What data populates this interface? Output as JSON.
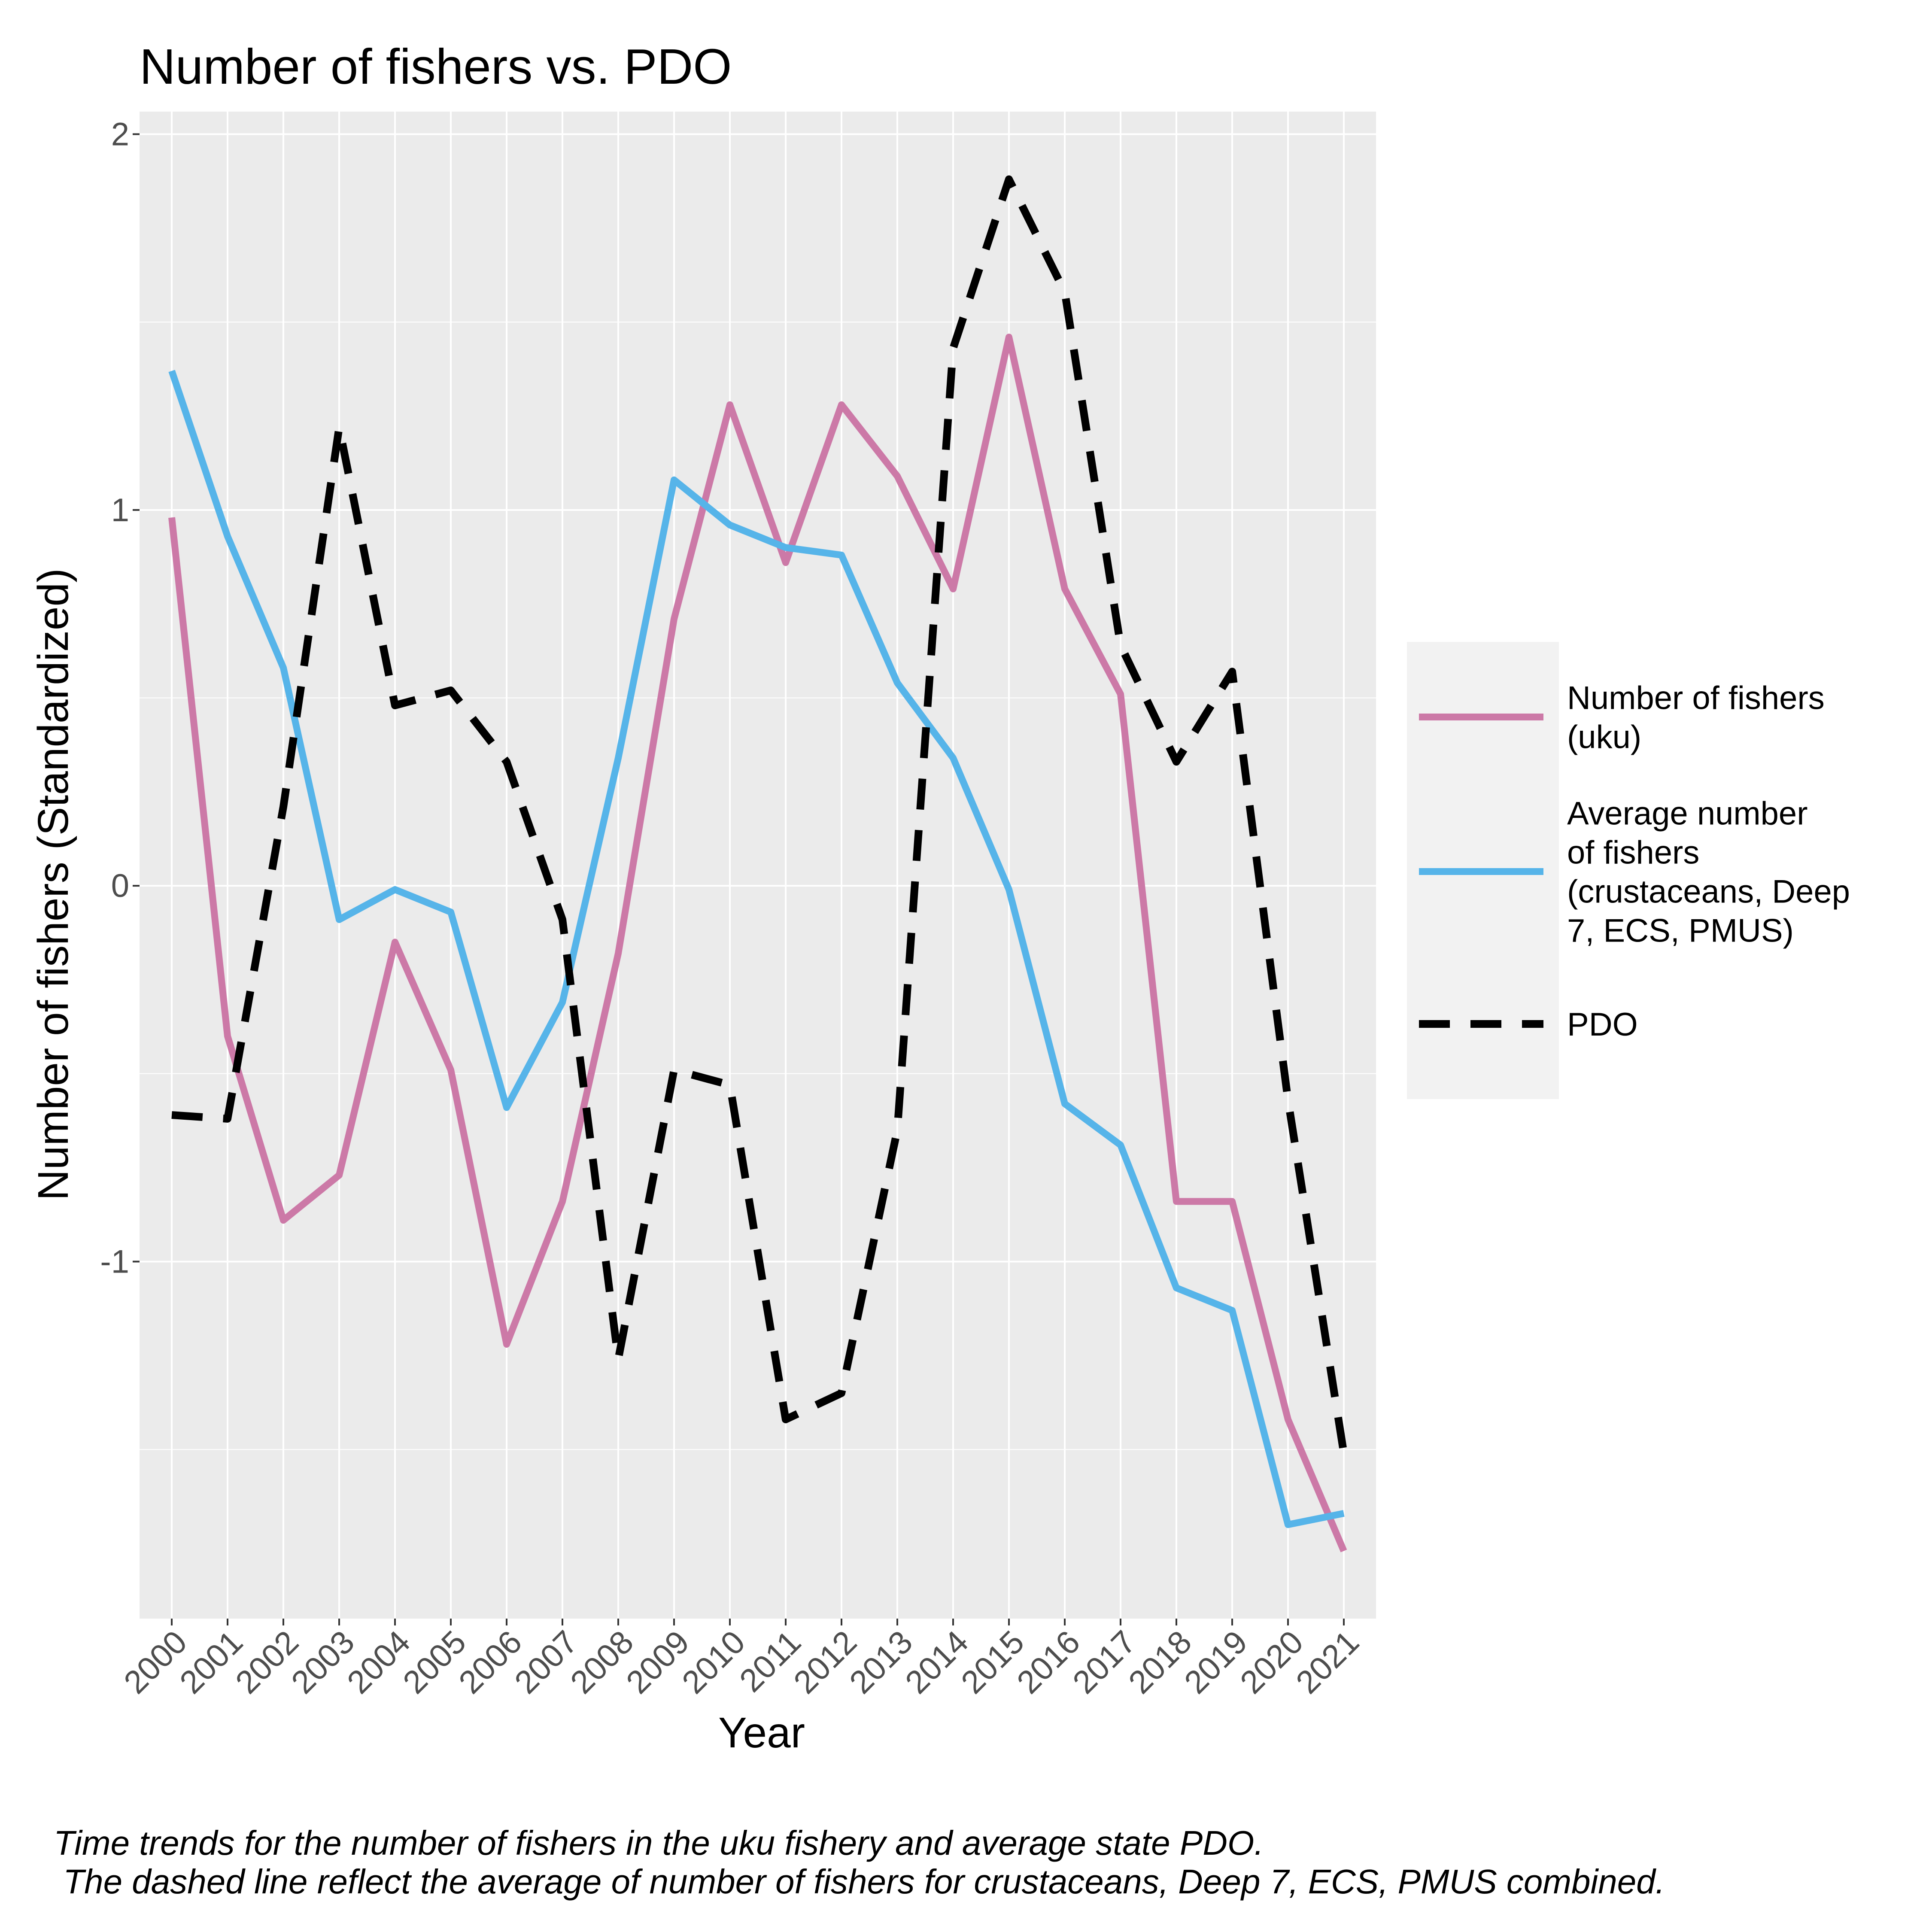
{
  "chart_data": {
    "type": "line",
    "title": "Number of fishers vs. PDO",
    "xlabel": "Year",
    "ylabel": "Number of fishers (Standardized)",
    "caption_line1": "Time trends for the number of fishers in the uku fishery and average state PDO.",
    "caption_line2": " The dashed line reflect the average of number of fishers for crustaceans, Deep 7, ECS, PMUS combined.",
    "x": [
      "2000",
      "2001",
      "2002",
      "2003",
      "2004",
      "2005",
      "2006",
      "2007",
      "2008",
      "2009",
      "2010",
      "2011",
      "2012",
      "2013",
      "2014",
      "2015",
      "2016",
      "2017",
      "2018",
      "2019",
      "2020",
      "2021"
    ],
    "ylim": [
      -1.95,
      2.06
    ],
    "y_ticks": [
      -1,
      0,
      1,
      2
    ],
    "y_tick_labels": [
      "-1",
      "0",
      "1",
      "2"
    ],
    "grid": true,
    "legend_position": "right",
    "series": [
      {
        "name": "Number of fishers\n(uku)",
        "color": "#CC79A7",
        "dash": "solid",
        "values": [
          0.98,
          -0.4,
          -0.89,
          -0.77,
          -0.15,
          -0.49,
          -1.22,
          -0.84,
          -0.18,
          0.71,
          1.28,
          0.86,
          1.28,
          1.09,
          0.79,
          1.46,
          0.79,
          0.51,
          -0.84,
          -0.84,
          -1.42,
          -1.77
        ]
      },
      {
        "name": "Average number\nof fishers\n(crustaceans, Deep\n7, ECS, PMUS)",
        "color": "#56B4E9",
        "dash": "solid",
        "values": [
          1.37,
          0.93,
          0.58,
          -0.09,
          -0.01,
          -0.07,
          -0.59,
          -0.31,
          0.34,
          1.08,
          0.96,
          0.9,
          0.88,
          0.54,
          0.34,
          -0.01,
          -0.58,
          -0.69,
          -1.07,
          -1.13,
          -1.7,
          -1.67
        ]
      },
      {
        "name": "PDO",
        "color": "#000000",
        "dash": "dashed",
        "values": [
          -0.61,
          -0.62,
          0.21,
          1.22,
          0.48,
          0.52,
          0.33,
          -0.09,
          -1.26,
          -0.49,
          -0.53,
          -1.42,
          -1.35,
          -0.65,
          1.43,
          1.88,
          1.58,
          0.64,
          0.33,
          0.57,
          -0.57,
          -1.51
        ]
      }
    ]
  }
}
